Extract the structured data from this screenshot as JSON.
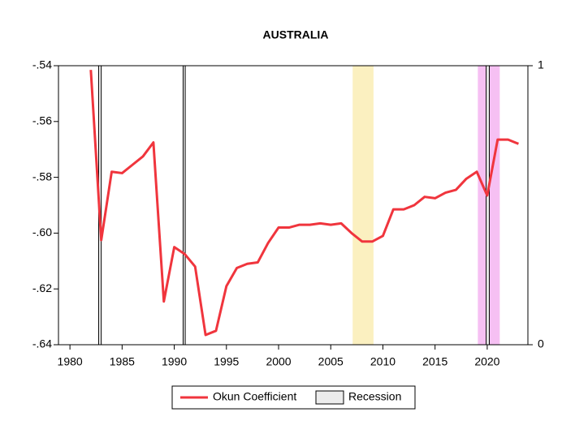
{
  "chart_data": {
    "type": "line",
    "title": "AUSTRALIA",
    "x": [
      1982,
      1983,
      1984,
      1985,
      1986,
      1987,
      1988,
      1989,
      1990,
      1991,
      1992,
      1993,
      1994,
      1995,
      1996,
      1997,
      1998,
      1999,
      2000,
      2001,
      2002,
      2003,
      2004,
      2005,
      2006,
      2007,
      2008,
      2009,
      2010,
      2011,
      2012,
      2013,
      2014,
      2015,
      2016,
      2017,
      2018,
      2019,
      2020,
      2021,
      2022,
      2023
    ],
    "series": [
      {
        "name": "Okun Coefficient",
        "color": "#f0353d",
        "values": [
          -0.5415,
          -0.6025,
          -0.578,
          -0.5785,
          -0.5755,
          -0.5725,
          -0.5675,
          -0.6245,
          -0.605,
          -0.6075,
          -0.612,
          -0.6365,
          -0.635,
          -0.619,
          -0.6125,
          -0.611,
          -0.6105,
          -0.6035,
          -0.598,
          -0.598,
          -0.597,
          -0.597,
          -0.5965,
          -0.597,
          -0.5965,
          -0.6,
          -0.603,
          -0.603,
          -0.601,
          -0.5915,
          -0.5915,
          -0.59,
          -0.587,
          -0.5875,
          -0.5855,
          -0.5845,
          -0.5805,
          -0.578,
          -0.5865,
          -0.5665,
          -0.5665,
          -0.568
        ]
      }
    ],
    "recession": {
      "name": "Recession",
      "color": "#ececec",
      "periods": [
        [
          1982.75,
          1983.0
        ],
        [
          1990.85,
          1991.05
        ],
        [
          2019.9,
          2020.2
        ]
      ]
    },
    "highlights": [
      {
        "start": 2007.1,
        "end": 2009.1,
        "color": "#fbf0c0"
      },
      {
        "start": 2019.1,
        "end": 2021.2,
        "color": "#f6c0f3"
      }
    ],
    "xlim": [
      1978.9,
      2023.9
    ],
    "xticks": [
      1980,
      1985,
      1990,
      1995,
      2000,
      2005,
      2010,
      2015,
      2020
    ],
    "ylim": [
      -0.64,
      -0.54
    ],
    "yticks": [
      {
        "value": -0.64,
        "label": "-.64"
      },
      {
        "value": -0.62,
        "label": "-.62"
      },
      {
        "value": -0.6,
        "label": "-.60"
      },
      {
        "value": -0.58,
        "label": "-.58"
      },
      {
        "value": -0.56,
        "label": "-.56"
      },
      {
        "value": -0.54,
        "label": "-.54"
      }
    ],
    "y2lim": [
      0,
      1
    ],
    "y2ticks": [
      0,
      1
    ]
  }
}
